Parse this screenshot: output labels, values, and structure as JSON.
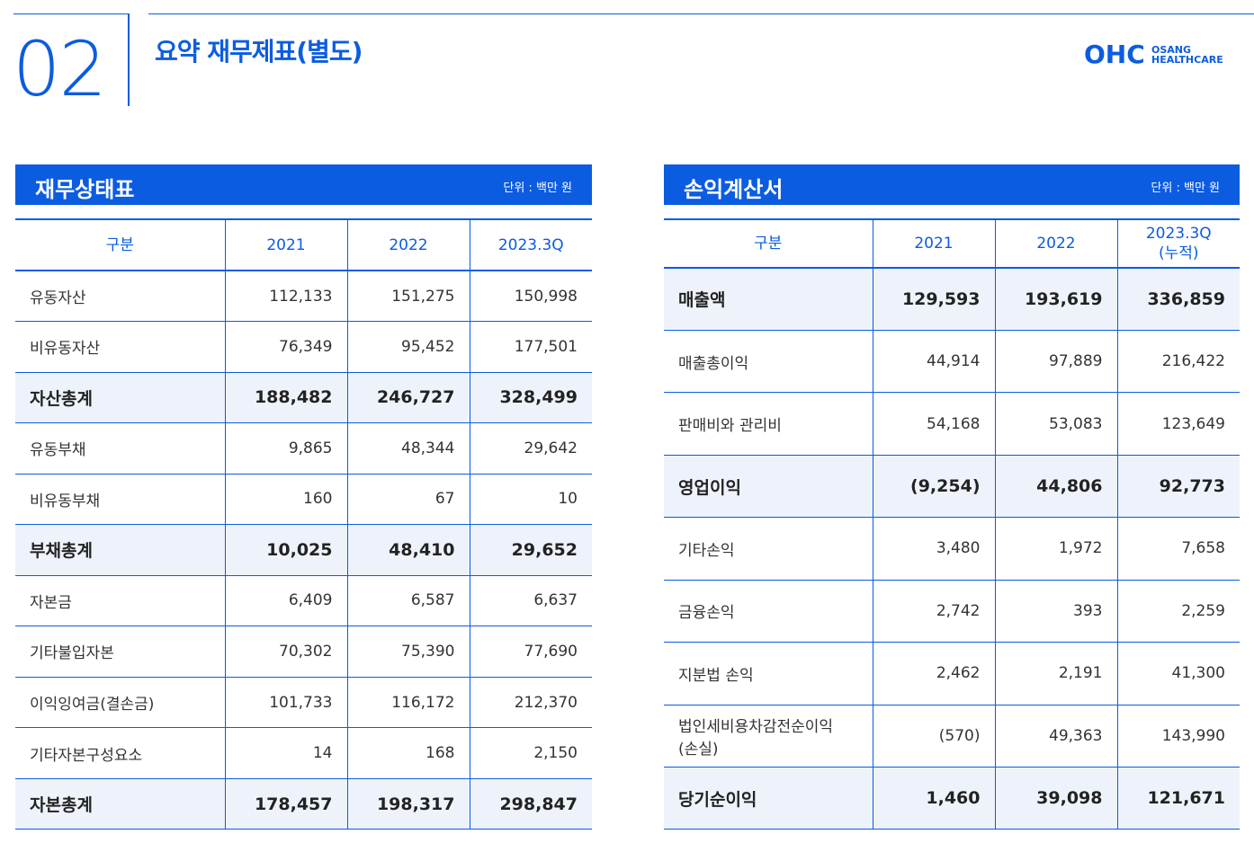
{
  "header": {
    "number": "02",
    "title": "요약 재무제표(별도)",
    "logo": {
      "mark": "OHC",
      "line1": "OSANG",
      "line2": "HEALTHCARE"
    }
  },
  "tables": [
    {
      "title": "재무상태표",
      "unit": "단위 : 백만 원",
      "columns": [
        "구분",
        "2021",
        "2022",
        "2023.3Q"
      ],
      "rows": [
        {
          "label": "유동자산",
          "values": [
            "112,133",
            "151,275",
            "150,998"
          ],
          "bold": false
        },
        {
          "label": "비유동자산",
          "values": [
            "76,349",
            "95,452",
            "177,501"
          ],
          "bold": false
        },
        {
          "label": "자산총계",
          "values": [
            "188,482",
            "246,727",
            "328,499"
          ],
          "bold": true
        },
        {
          "label": "유동부채",
          "values": [
            "9,865",
            "48,344",
            "29,642"
          ],
          "bold": false
        },
        {
          "label": "비유동부채",
          "values": [
            "160",
            "67",
            "10"
          ],
          "bold": false
        },
        {
          "label": "부채총계",
          "values": [
            "10,025",
            "48,410",
            "29,652"
          ],
          "bold": true
        },
        {
          "label": "자본금",
          "values": [
            "6,409",
            "6,587",
            "6,637"
          ],
          "bold": false
        },
        {
          "label": "기타불입자본",
          "values": [
            "70,302",
            "75,390",
            "77,690"
          ],
          "bold": false
        },
        {
          "label": "이익잉여금(결손금)",
          "values": [
            "101,733",
            "116,172",
            "212,370"
          ],
          "bold": false
        },
        {
          "label": "기타자본구성요소",
          "values": [
            "14",
            "168",
            "2,150"
          ],
          "bold": false
        },
        {
          "label": "자본총계",
          "values": [
            "178,457",
            "198,317",
            "298,847"
          ],
          "bold": true
        }
      ]
    },
    {
      "title": "손익계산서",
      "unit": "단위 : 백만 원",
      "columns": [
        "구분",
        "2021",
        "2022",
        "2023.3Q\n(누적)"
      ],
      "rows": [
        {
          "label": "매출액",
          "values": [
            "129,593",
            "193,619",
            "336,859"
          ],
          "bold": true
        },
        {
          "label": "매출총이익",
          "values": [
            "44,914",
            "97,889",
            "216,422"
          ],
          "bold": false
        },
        {
          "label": "판매비와 관리비",
          "values": [
            "54,168",
            "53,083",
            "123,649"
          ],
          "bold": false
        },
        {
          "label": "영업이익",
          "values": [
            "(9,254)",
            "44,806",
            "92,773"
          ],
          "bold": true
        },
        {
          "label": "기타손익",
          "values": [
            "3,480",
            "1,972",
            "7,658"
          ],
          "bold": false
        },
        {
          "label": "금융손익",
          "values": [
            "2,742",
            "393",
            "2,259"
          ],
          "bold": false
        },
        {
          "label": "지분법 손익",
          "values": [
            "2,462",
            "2,191",
            "41,300"
          ],
          "bold": false
        },
        {
          "label": "법인세비용차감전순이익\n(손실)",
          "values": [
            "(570)",
            "49,363",
            "143,990"
          ],
          "bold": false
        },
        {
          "label": "당기순이익",
          "values": [
            "1,460",
            "39,098",
            "121,671"
          ],
          "bold": true
        }
      ]
    }
  ]
}
